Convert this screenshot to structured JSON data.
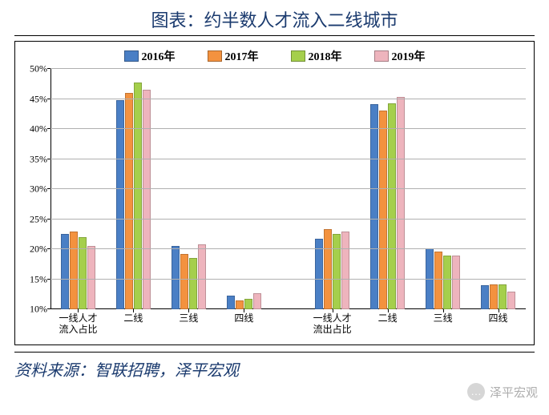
{
  "title": "图表：约半数人才流入二线城市",
  "source": "资料来源：智联招聘，泽平宏观",
  "watermark": "泽平宏观",
  "chart": {
    "type": "bar",
    "ylim": [
      10,
      50
    ],
    "ytick_step": 5,
    "ytick_suffix": "%",
    "grid_color": "#b0b0b0",
    "background_color": "#ffffff",
    "series": [
      {
        "label": "2016年",
        "color": "#4a7fc5"
      },
      {
        "label": "2017年",
        "color": "#f3923f"
      },
      {
        "label": "2018年",
        "color": "#a5cf4c"
      },
      {
        "label": "2019年",
        "color": "#eeb4bd"
      }
    ],
    "panels": [
      {
        "groups": [
          {
            "label": "一线人才\n流入占比",
            "values": [
              22.5,
              23.0,
              22.0,
              20.5
            ]
          },
          {
            "label": "二线",
            "values": [
              44.8,
              46.0,
              47.8,
              46.5
            ]
          },
          {
            "label": "三线",
            "values": [
              20.5,
              19.2,
              18.5,
              20.8
            ]
          },
          {
            "label": "四线",
            "values": [
              12.3,
              11.5,
              11.8,
              12.7
            ]
          }
        ]
      },
      {
        "groups": [
          {
            "label": "一线人才\n流出占比",
            "values": [
              21.8,
              23.3,
              22.6,
              22.9
            ]
          },
          {
            "label": "二线",
            "values": [
              44.2,
              43.1,
              44.3,
              45.3
            ]
          },
          {
            "label": "三线",
            "values": [
              20.1,
              19.6,
              19.0,
              19.0
            ]
          },
          {
            "label": "四线",
            "values": [
              14.0,
              14.2,
              14.2,
              12.9
            ]
          }
        ]
      }
    ]
  }
}
